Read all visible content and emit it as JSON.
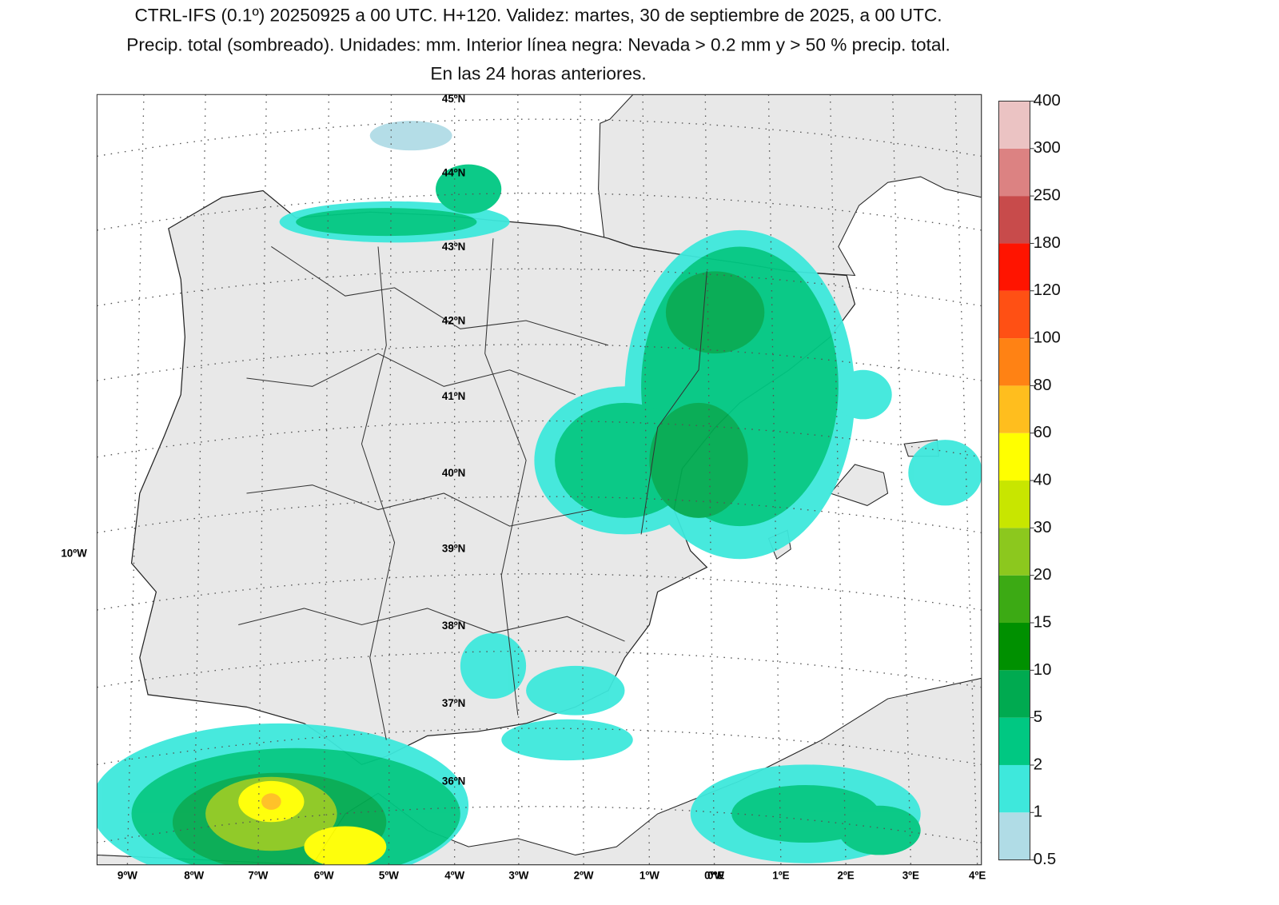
{
  "title_lines": [
    "CTRL-IFS (0.1º) 20250925 a 00 UTC. H+120. Validez: martes, 30 de septiembre de 2025, a 00 UTC.",
    "Precip. total (sombreado). Unidades: mm. Interior línea negra: Nevada > 0.2 mm y > 50 % precip. total.",
    "En las 24 horas anteriores."
  ],
  "map": {
    "latitude_labels": [
      "45ºN",
      "44ºN",
      "43ºN",
      "42ºN",
      "41ºN",
      "40ºN",
      "39ºN",
      "38ºN",
      "37ºN",
      "36ºN"
    ],
    "longitude_labels": [
      "9ºW",
      "8ºW",
      "7ºW",
      "6ºW",
      "5ºW",
      "4ºW",
      "3ºW",
      "2ºW",
      "1ºW",
      "0ºW",
      "0ºE",
      "1ºE",
      "2ºE",
      "3ºE",
      "4ºE"
    ],
    "side_label": "10ºW"
  },
  "colorbar": {
    "levels": [
      0.5,
      1,
      2,
      5,
      10,
      15,
      20,
      30,
      40,
      60,
      80,
      100,
      120,
      180,
      250,
      300,
      400
    ],
    "colors": [
      "#b0dce6",
      "#3ee8dc",
      "#00c882",
      "#00aa50",
      "#009000",
      "#3caa14",
      "#8cc81e",
      "#c8e600",
      "#ffff00",
      "#ffbe1e",
      "#ff8214",
      "#ff5014",
      "#ff1400",
      "#c84b4b",
      "#dc8282",
      "#ebc3c3"
    ]
  }
}
